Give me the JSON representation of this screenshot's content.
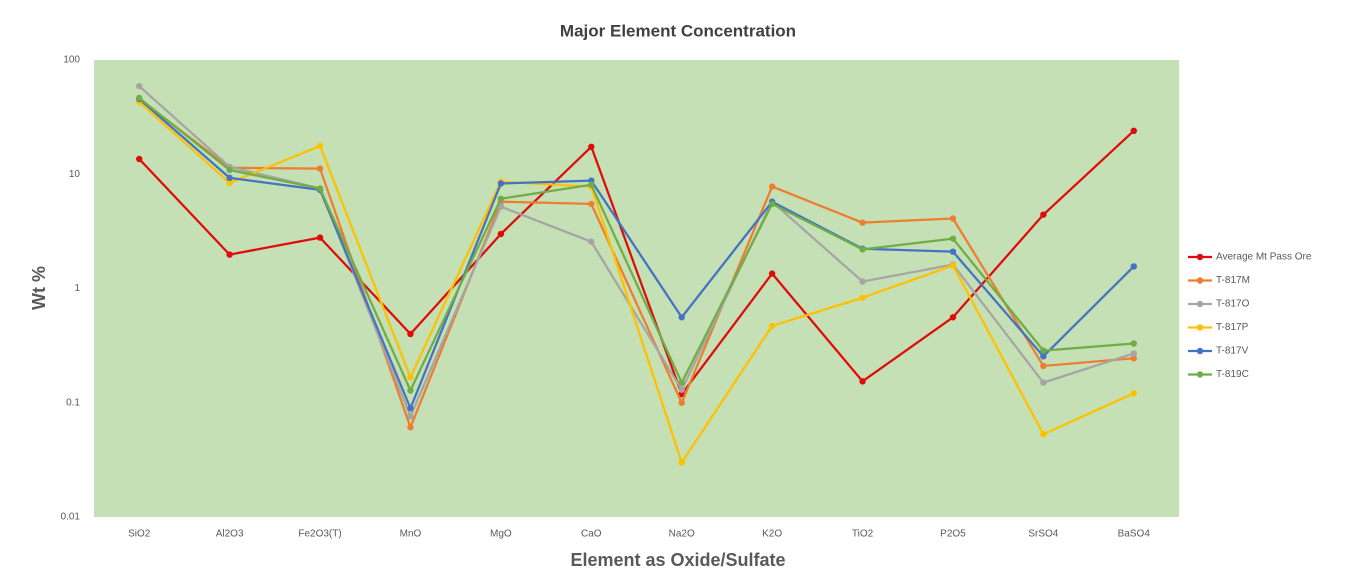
{
  "chart_data": {
    "type": "line",
    "title": "Major Element Concentration",
    "x_label": "Element as Oxide/Sulfate",
    "y_label": "Wt %",
    "categories": [
      "SiO2",
      "Al2O3",
      "Fe2O3(T)",
      "MnO",
      "MgO",
      "CaO",
      "Na2O",
      "K2O",
      "TiO2",
      "P2O5",
      "SrSO4",
      "BaSO4"
    ],
    "y_scale": "log",
    "ylim": [
      0.01,
      100
    ],
    "yticks": [
      0.01,
      0.1,
      1,
      10,
      100
    ],
    "grid": false,
    "plot_background": "#c5e0b4",
    "legend_position": "right",
    "series": [
      {
        "name": "Average Mt Pass Ore",
        "color": "#e00b0b",
        "values": [
          13.6,
          1.98,
          2.79,
          0.4,
          3.0,
          17.4,
          0.119,
          1.35,
          0.154,
          0.56,
          4.43,
          24
        ]
      },
      {
        "name": "T-817M",
        "color": "#ed7d31",
        "values": [
          45.6,
          11.4,
          11.2,
          0.061,
          5.75,
          5.5,
          0.1,
          7.8,
          3.77,
          4.1,
          0.21,
          0.245
        ]
      },
      {
        "name": "T-817O",
        "color": "#a5a5a5",
        "values": [
          59,
          11.6,
          7.5,
          0.076,
          5.2,
          2.57,
          0.13,
          5.75,
          1.15,
          1.62,
          0.15,
          0.27
        ]
      },
      {
        "name": "T-817P",
        "color": "#ffc000",
        "values": [
          43,
          8.4,
          17.7,
          0.167,
          8.6,
          7.8,
          0.03,
          0.47,
          0.83,
          1.59,
          0.053,
          0.121
        ]
      },
      {
        "name": "T-817V",
        "color": "#4472c4",
        "values": [
          45.6,
          9.3,
          7.3,
          0.0895,
          8.3,
          8.8,
          0.56,
          5.75,
          2.23,
          2.1,
          0.255,
          1.56
        ]
      },
      {
        "name": "T-819C",
        "color": "#70ad47",
        "values": [
          46.5,
          10.9,
          7.5,
          0.128,
          6.1,
          8.1,
          0.15,
          5.5,
          2.2,
          2.73,
          0.286,
          0.33
        ]
      }
    ]
  }
}
